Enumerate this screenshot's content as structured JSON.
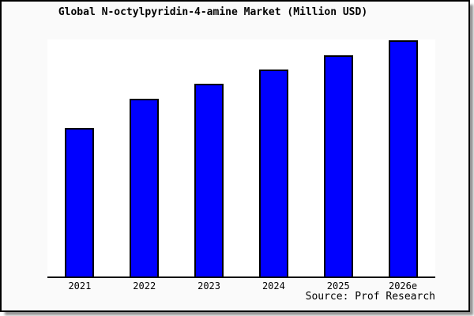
{
  "chart_data": {
    "type": "bar",
    "title": "Global N-octylpyridin-4-amine Market (Million USD)",
    "categories": [
      "2021",
      "2022",
      "2023",
      "2024",
      "2025",
      "2026e"
    ],
    "values": [
      62.9,
      75.3,
      81.6,
      87.6,
      93.6,
      100.0
    ],
    "values_note": "y-axis has no tick labels or gridlines; values are relative bar heights normalized so 2026e = 100",
    "xlabel": "",
    "ylabel": "",
    "ylim": [
      0,
      100.3
    ],
    "grid": false,
    "legend": false,
    "bar_color": "#0000ff",
    "bar_border_color": "#000000",
    "plot_background": "#ffffff",
    "card_background": "#fafafa",
    "source": "Source: Prof Research"
  }
}
